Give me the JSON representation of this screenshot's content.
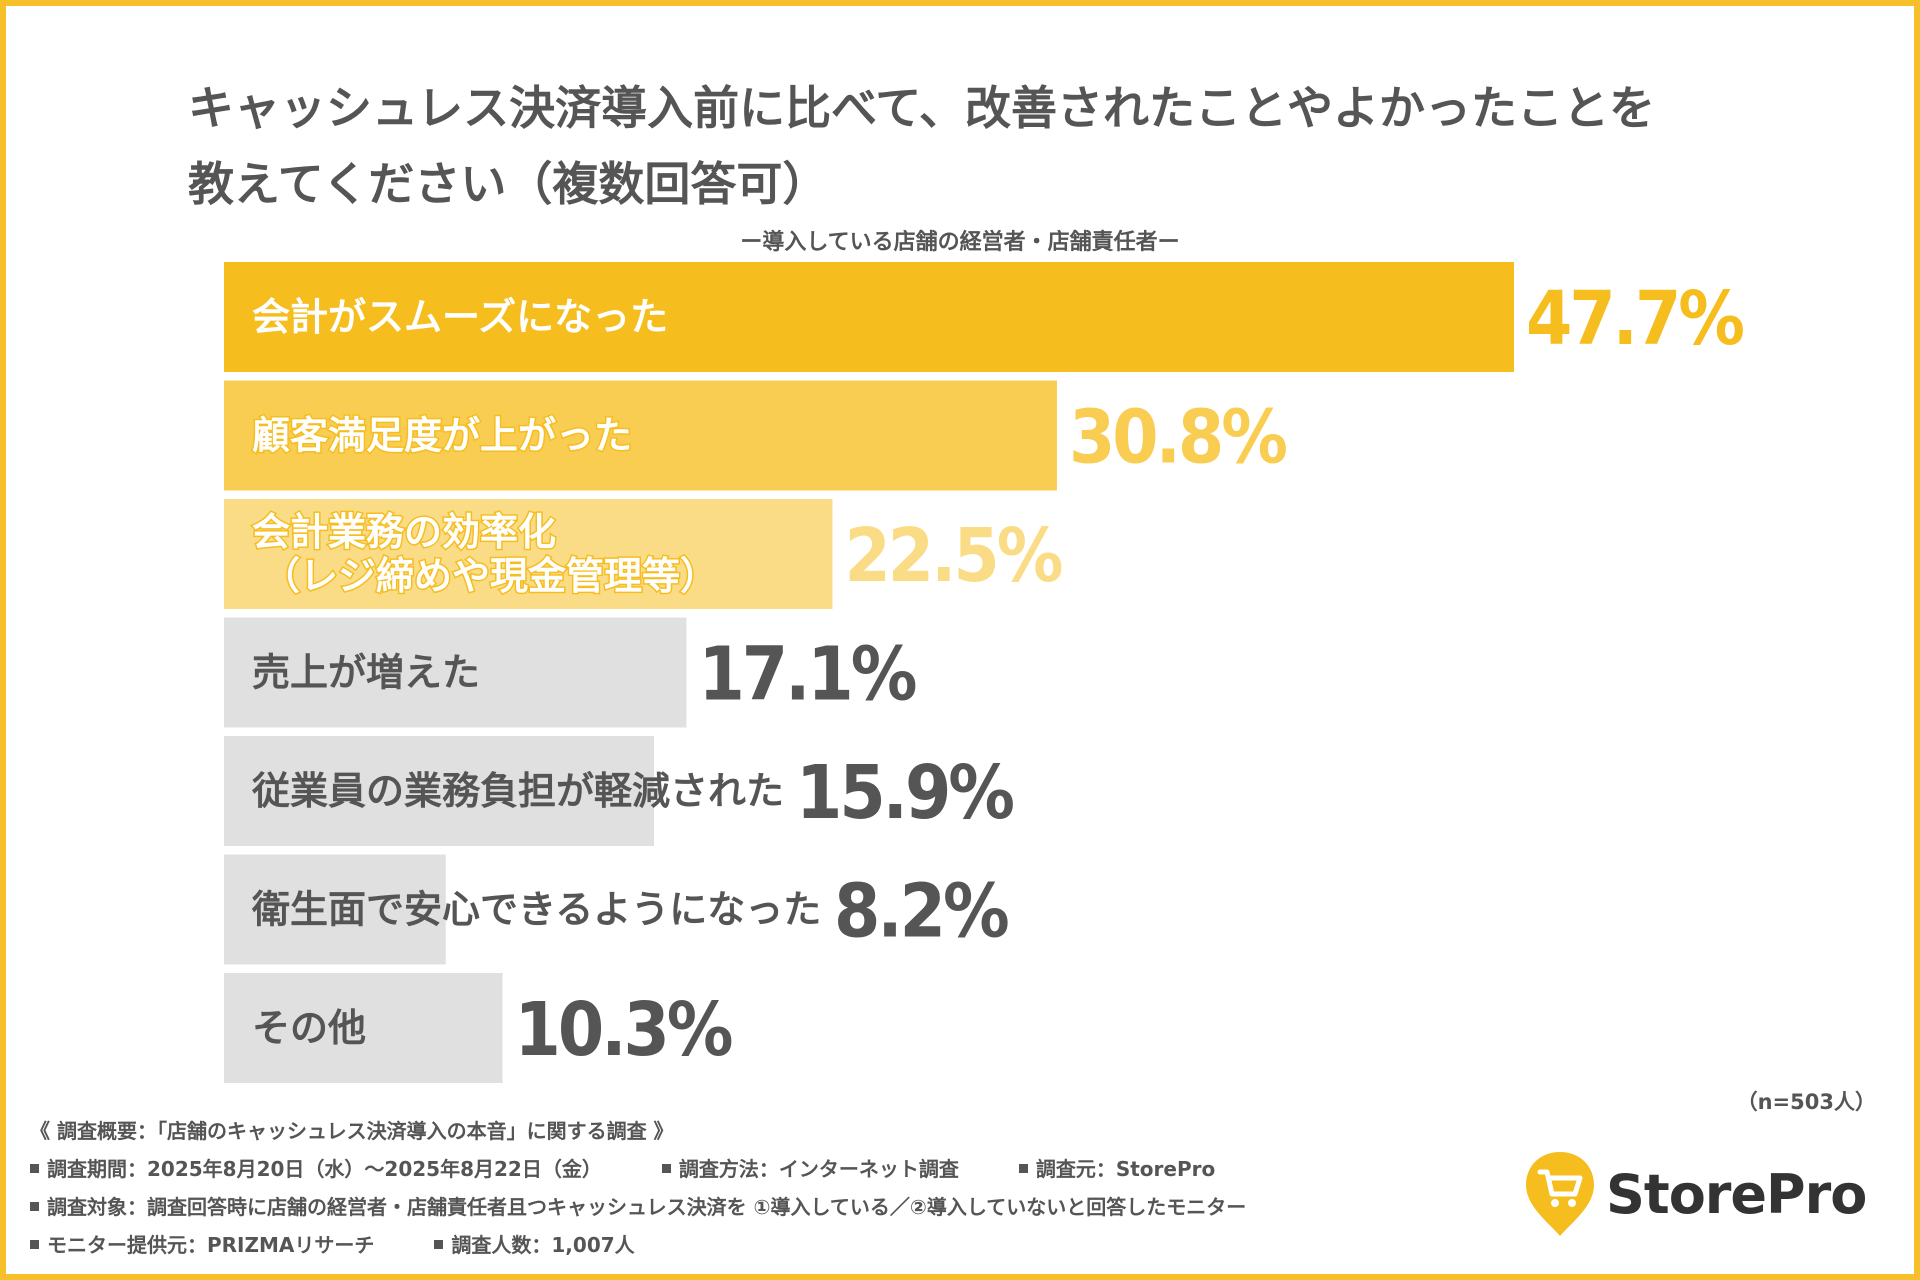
{
  "title_line1": "キャッシュレス決済導入前に比べて、改善されたことやよかったことを",
  "title_line2": "教えてください（複数回答可）",
  "subtitle": "ー導入している店舗の経営者・店舗責任者ー",
  "chart_data": {
    "type": "bar",
    "orientation": "horizontal",
    "categories": [
      [
        "会計がスムーズになった"
      ],
      [
        "顧客満足度が上がった"
      ],
      [
        "会計業務の効率化",
        "（レジ締めや現金管理等）"
      ],
      [
        "売上が増えた"
      ],
      [
        "従業員の業務負担が軽減された"
      ],
      [
        "衛生面で安心できるようになった"
      ],
      [
        "その他"
      ]
    ],
    "values": [
      47.7,
      30.8,
      22.5,
      17.1,
      15.9,
      8.2,
      10.3
    ],
    "value_labels": [
      "47.7%",
      "30.8%",
      "22.5%",
      "17.1%",
      "15.9%",
      "8.2%",
      "10.3%"
    ],
    "unit": "%",
    "bar_colors": [
      "#f6bd1f",
      "#f9cd52",
      "#fbdc86",
      "#e0e0e0",
      "#e0e0e0",
      "#e0e0e0",
      "#e0e0e0"
    ],
    "bar_text_colors": [
      "#ffffff",
      "#ffffff",
      "#ffffff",
      "#555555",
      "#555555",
      "#555555",
      "#555555"
    ],
    "value_colors": [
      "#f6bd1f",
      "#f9cd52",
      "#fbdc86",
      "#555555",
      "#555555",
      "#555555",
      "#555555"
    ],
    "xlim": [
      0,
      47.7
    ],
    "grid": false,
    "legend": "none"
  },
  "n_note": "（n=503人）",
  "survey": {
    "overview": "《 調査概要：「店舗のキャッシュレス決済導入の本音」に関する調査 》",
    "period": "調査期間：2025年8月20日（水）～2025年8月22日（金）",
    "method": "調査方法：インターネット調査",
    "source": "調査元：StorePro",
    "target": "調査対象：調査回答時に店舗の経営者・店舗責任者且つキャッシュレス決済を ①導入している／②導入していないと回答したモニター",
    "provider": "モニター提供元：PRIZMAリサーチ",
    "respondents": "調査人数：1,007人"
  },
  "brand": {
    "name": "StorePro",
    "logo_icon": "cart-pin-icon",
    "accent": "#f6bd1f"
  }
}
